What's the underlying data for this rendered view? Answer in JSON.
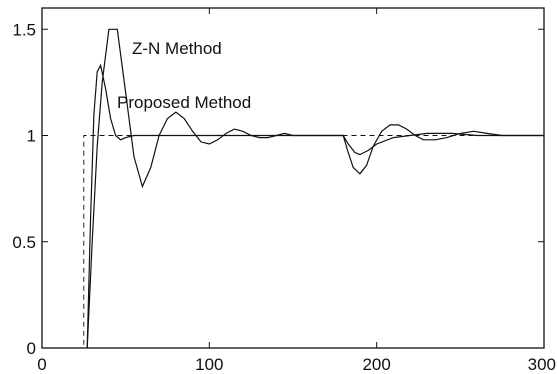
{
  "chart_data": {
    "type": "line",
    "xlim": [
      0,
      300
    ],
    "ylim": [
      0,
      1.6
    ],
    "grid": false,
    "x_ticks": [
      "0",
      "100",
      "200",
      "300"
    ],
    "y_ticks": [
      "0",
      "0.5",
      "1",
      "1.5"
    ],
    "annotations": [
      {
        "text": "Z-N Method"
      },
      {
        "text": "Proposed Method"
      }
    ],
    "series": [
      {
        "style": "dashed",
        "x": [
          0,
          25,
          25,
          30,
          300
        ],
        "y": [
          0,
          0,
          1,
          1,
          1
        ]
      },
      {
        "style": "solid",
        "x": [
          27,
          30,
          33,
          36,
          40,
          45,
          50,
          55,
          60,
          65,
          70,
          75,
          80,
          85,
          90,
          95,
          100,
          105,
          110,
          115,
          120,
          125,
          130,
          135,
          140,
          145,
          150,
          160,
          170,
          180,
          183,
          186,
          190,
          194,
          198,
          203,
          208,
          213,
          218,
          223,
          228,
          235,
          242,
          250,
          258,
          266,
          275,
          285,
          300
        ],
        "y": [
          0,
          0.5,
          0.95,
          1.25,
          1.5,
          1.5,
          1.2,
          0.9,
          0.76,
          0.85,
          1.0,
          1.08,
          1.11,
          1.08,
          1.02,
          0.97,
          0.96,
          0.98,
          1.01,
          1.03,
          1.02,
          1.0,
          0.99,
          0.99,
          1.0,
          1.01,
          1.0,
          1.0,
          1.0,
          1.0,
          0.92,
          0.85,
          0.82,
          0.86,
          0.95,
          1.02,
          1.05,
          1.05,
          1.03,
          1.0,
          0.98,
          0.98,
          0.99,
          1.01,
          1.02,
          1.01,
          1.0,
          1.0,
          1.0
        ]
      },
      {
        "style": "solid",
        "x": [
          27,
          29,
          31,
          33,
          35,
          38,
          41,
          44,
          47,
          50,
          55,
          60,
          70,
          80,
          100,
          120,
          140,
          160,
          180,
          183,
          187,
          190,
          195,
          200,
          210,
          220,
          230,
          245,
          260,
          280,
          300
        ],
        "y": [
          0,
          0.6,
          1.1,
          1.3,
          1.33,
          1.22,
          1.08,
          1.0,
          0.98,
          0.99,
          1.0,
          1.0,
          1.0,
          1.0,
          1.0,
          1.0,
          1.0,
          1.0,
          1.0,
          0.96,
          0.92,
          0.91,
          0.93,
          0.96,
          0.99,
          1.0,
          1.01,
          1.01,
          1.0,
          1.0,
          1.0
        ]
      }
    ]
  }
}
